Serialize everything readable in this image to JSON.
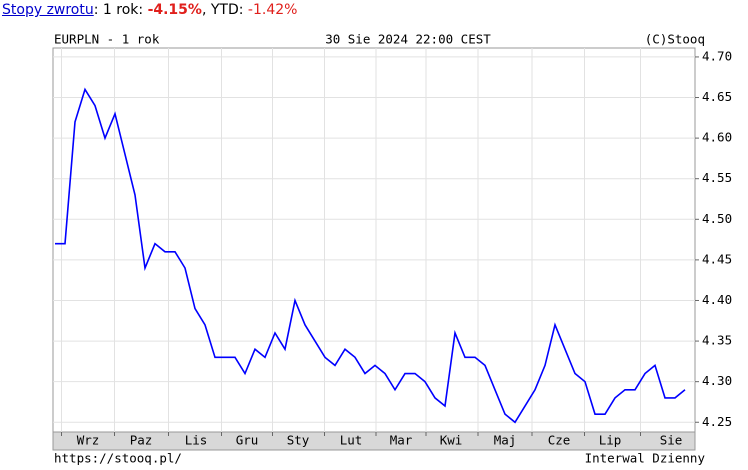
{
  "returns": {
    "link": "Stopy zwrotu",
    "text1": ": 1 rok: ",
    "value1": "-4.15%",
    "text2": ", YTD: ",
    "value2": "-1.42%"
  },
  "chart_data": {
    "type": "line",
    "title": "EURPLN - 1 rok",
    "date": "30 Sie 2024 22:00 CEST",
    "credit": "(C)Stooq",
    "footer_url": "https://stooq.pl/",
    "interval": "Interwal Dzienny",
    "color": "#0000ff",
    "grid": true,
    "values": [
      4.47,
      4.47,
      4.62,
      4.66,
      4.64,
      4.6,
      4.63,
      4.58,
      4.53,
      4.44,
      4.47,
      4.46,
      4.46,
      4.44,
      4.39,
      4.37,
      4.33,
      4.33,
      4.33,
      4.31,
      4.34,
      4.33,
      4.36,
      4.34,
      4.4,
      4.37,
      4.35,
      4.33,
      4.32,
      4.34,
      4.33,
      4.31,
      4.32,
      4.31,
      4.29,
      4.31,
      4.31,
      4.3,
      4.28,
      4.27,
      4.36,
      4.33,
      4.33,
      4.32,
      4.29,
      4.26,
      4.25,
      4.27,
      4.29,
      4.32,
      4.37,
      4.34,
      4.31,
      4.3,
      4.26,
      4.26,
      4.28,
      4.29,
      4.29,
      4.31,
      4.32,
      4.28,
      4.28,
      4.29
    ],
    "xlim": [
      -0.2,
      64
    ],
    "xticks": [
      {
        "value": 3.3,
        "label": "Wrz"
      },
      {
        "value": 8.6,
        "label": "Paz"
      },
      {
        "value": 14.1,
        "label": "Lis"
      },
      {
        "value": 19.2,
        "label": "Gru"
      },
      {
        "value": 24.3,
        "label": "Sty"
      },
      {
        "value": 29.6,
        "label": "Lut"
      },
      {
        "value": 34.6,
        "label": "Mar"
      },
      {
        "value": 39.6,
        "label": "Kwi"
      },
      {
        "value": 45,
        "label": "Maj"
      },
      {
        "value": 50.4,
        "label": "Cze"
      },
      {
        "value": 55.5,
        "label": "Lip"
      },
      {
        "value": 61.6,
        "label": "Sie"
      }
    ],
    "ylim": [
      4.238,
      4.711
    ],
    "yticks": [
      4.25,
      {
        "value": 4.3,
        "label": "4.30"
      },
      4.35,
      {
        "value": 4.4,
        "label": "4.40"
      },
      4.45,
      {
        "value": 4.5,
        "label": "4.50"
      },
      4.55,
      {
        "value": 4.6,
        "label": "4.60"
      },
      4.65,
      {
        "value": 4.7,
        "label": "4.70"
      }
    ]
  }
}
